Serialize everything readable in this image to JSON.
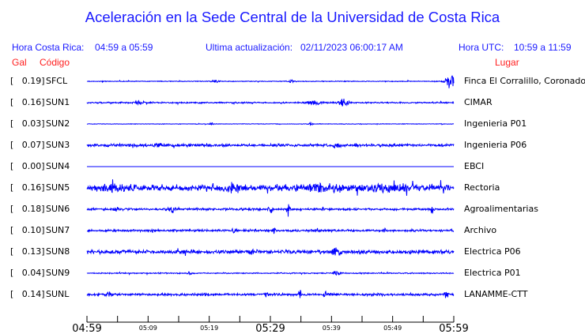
{
  "title": "Aceleración en la Sede Central de la Universidad de Costa Rica",
  "header": {
    "local_label": "Hora Costa Rica:",
    "local_range": "04:59 a 05:59",
    "update_label": "Ultima actualización:",
    "update_value": "02/11/2023 06:00:17 AM",
    "utc_label": "Hora UTC:",
    "utc_range": "10:59 a 11:59"
  },
  "columns": {
    "gal": "Gal",
    "code": "Código",
    "place": "Lugar"
  },
  "colors": {
    "trace": "#0000ff",
    "header": "#1a1aff",
    "column_headers": "#ff2020"
  },
  "chart_data": {
    "type": "line",
    "title": "Aceleración en la Sede Central de la Universidad de Costa Rica",
    "x_ticks": [
      "04:59",
      "",
      "05:09",
      "",
      "05:19",
      "",
      "05:29",
      "",
      "05:39",
      "",
      "05:49",
      "",
      "05:59"
    ],
    "x_range": [
      "04:59",
      "05:59"
    ],
    "grid": false,
    "stations": [
      {
        "gal": "[   0.19]",
        "code": "SFCL",
        "place": "Finca El Corralillo, Coronado"
      },
      {
        "gal": "[   0.16]",
        "code": "SUN1",
        "place": "CIMAR"
      },
      {
        "gal": "[   0.03]",
        "code": "SUN2",
        "place": "Ingenieria P01"
      },
      {
        "gal": "[   0.07]",
        "code": "SUN3",
        "place": "Ingenieria P06"
      },
      {
        "gal": "[   0.00]",
        "code": "SUN4",
        "place": "EBCI"
      },
      {
        "gal": "[   0.16]",
        "code": "SUN5",
        "place": "Rectoria"
      },
      {
        "gal": "[   0.18]",
        "code": "SUN6",
        "place": "Agroalimentarias"
      },
      {
        "gal": "[   0.10]",
        "code": "SUN7",
        "place": "Archivo"
      },
      {
        "gal": "[   0.13]",
        "code": "SUN8",
        "place": "Electrica P06"
      },
      {
        "gal": "[   0.04]",
        "code": "SUN9",
        "place": "Electrica P01"
      },
      {
        "gal": "[   0.14]",
        "code": "SUNL",
        "place": "LANAMME-CTT"
      }
    ]
  }
}
